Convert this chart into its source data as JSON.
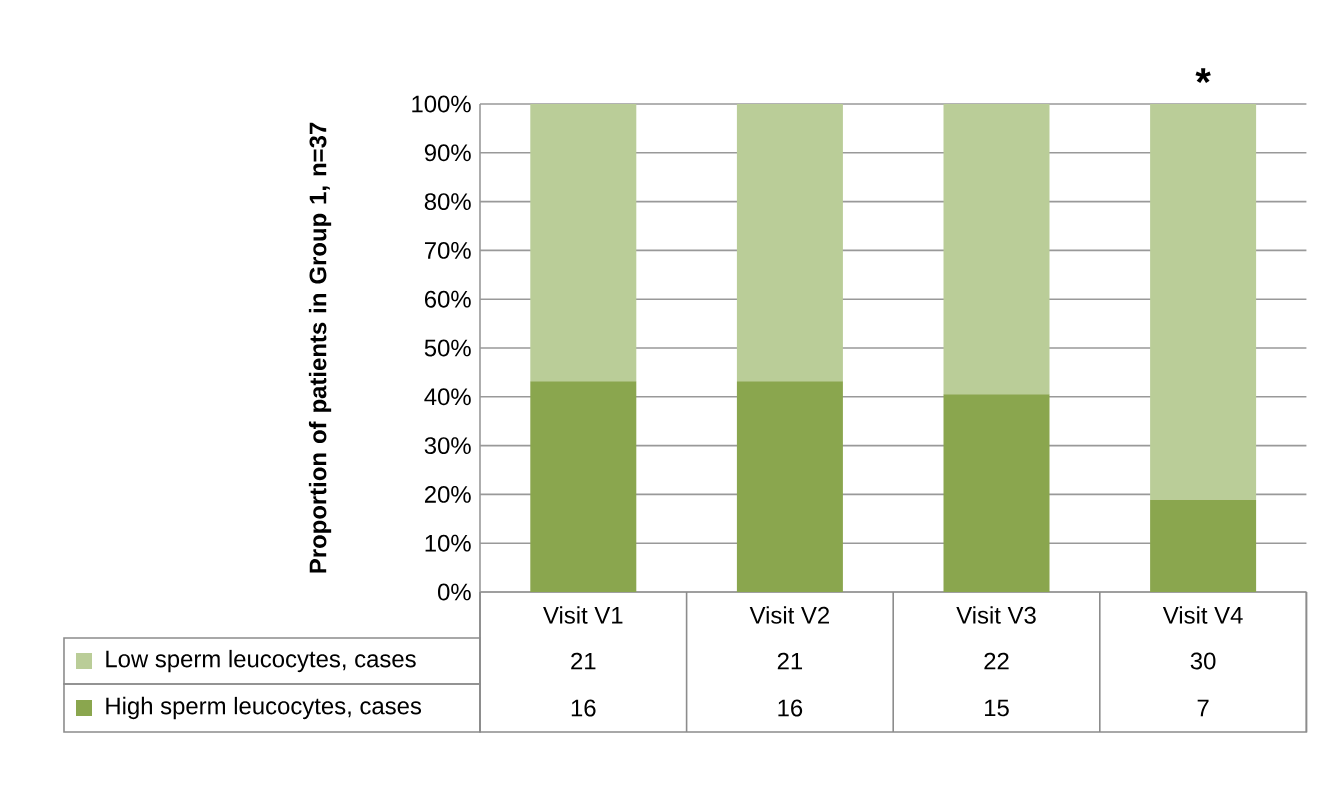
{
  "chart_data": {
    "type": "bar",
    "stacked": true,
    "ylabel": "Proportion of patients in Group 1, n=37",
    "categories": [
      "Visit V1",
      "Visit V2",
      "Visit V3",
      "Visit V4"
    ],
    "series": [
      {
        "name": "High sperm leucocytes, cases",
        "color": "#8aa64e",
        "values": [
          43.2,
          43.2,
          40.5,
          18.9
        ]
      },
      {
        "name": "Low sperm leucocytes, cases",
        "color": "#bacd98",
        "values": [
          56.8,
          56.8,
          59.5,
          81.1
        ]
      }
    ],
    "ylim": [
      0,
      100
    ],
    "yticks": [
      {
        "value": 0,
        "label": "0%"
      },
      {
        "value": 10,
        "label": "10%"
      },
      {
        "value": 20,
        "label": "20%"
      },
      {
        "value": 30,
        "label": "30%"
      },
      {
        "value": 40,
        "label": "40%"
      },
      {
        "value": 50,
        "label": "50%"
      },
      {
        "value": 60,
        "label": "60%"
      },
      {
        "value": 70,
        "label": "70%"
      },
      {
        "value": 80,
        "label": "80%"
      },
      {
        "value": 90,
        "label": "90%"
      },
      {
        "value": 100,
        "label": "100%"
      }
    ],
    "grid": "y",
    "legend": "bottom",
    "annotations": [
      "*",
      "21",
      "21",
      "22",
      "30",
      "16",
      "16",
      "15",
      "7"
    ]
  }
}
